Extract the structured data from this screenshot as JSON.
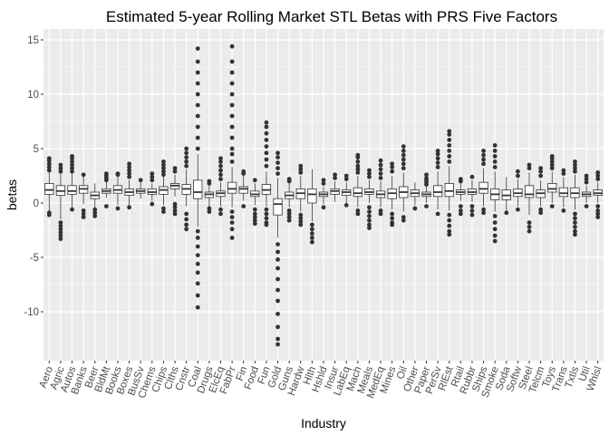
{
  "chart_data": {
    "type": "boxplot",
    "title": "Estimated 5-year Rolling Market STL Betas with PRS Five Factors",
    "xlabel": "Industry",
    "ylabel": "betas",
    "ylim": [
      -14.5,
      16
    ],
    "yticks": [
      -10,
      -5,
      0,
      5,
      10,
      15
    ],
    "grid": true,
    "legend": "none",
    "colors": {
      "panel": "#ebebeb",
      "grid_major": "#ffffff",
      "box_fill": "#ffffff",
      "box_line": "#333333",
      "outlier": "#333333"
    },
    "categories": [
      "Aero",
      "Agric",
      "Autos",
      "Banks",
      "Beer",
      "BldMt",
      "Books",
      "Boxes",
      "BusSv",
      "Chems",
      "Chips",
      "Clths",
      "Cnstr",
      "Coal",
      "Drugs",
      "ElcEq",
      "FabPr",
      "Fin",
      "Food",
      "Fun",
      "Gold",
      "Guns",
      "Hardw",
      "Hlth",
      "Hshld",
      "Insur",
      "LabEq",
      "Mach",
      "Meals",
      "MedEq",
      "Mines",
      "Oil",
      "Other",
      "Paper",
      "PerSv",
      "RlEst",
      "Rtail",
      "Rubbr",
      "Ships",
      "Smoke",
      "Soda",
      "Softw",
      "Steel",
      "Telcm",
      "Toys",
      "Trans",
      "Txtls",
      "Util",
      "Whlsl"
    ],
    "boxes": [
      {
        "q1": 0.8,
        "median": 1.2,
        "q3": 1.8,
        "low": -0.8,
        "high": 2.8,
        "outliers": [
          -1.1,
          -0.9,
          3.0,
          3.3,
          3.6,
          3.9,
          4.1
        ]
      },
      {
        "q1": 0.7,
        "median": 1.1,
        "q3": 1.6,
        "low": -1.5,
        "high": 2.7,
        "outliers": [
          -3.3,
          -3.0,
          -2.7,
          -2.4,
          -2.1,
          -1.8,
          2.9,
          3.2,
          3.5
        ]
      },
      {
        "q1": 0.8,
        "median": 1.1,
        "q3": 1.6,
        "low": -0.4,
        "high": 2.7,
        "outliers": [
          -0.6,
          2.9,
          3.2,
          3.5,
          3.8,
          4.1,
          4.3
        ]
      },
      {
        "q1": 0.9,
        "median": 1.3,
        "q3": 1.6,
        "low": -0.1,
        "high": 2.4,
        "outliers": [
          -1.3,
          -1.0,
          -0.7,
          2.6
        ]
      },
      {
        "q1": 0.4,
        "median": 0.7,
        "q3": 1.0,
        "low": -0.4,
        "high": 1.8,
        "outliers": [
          -1.2,
          -0.9,
          -0.6
        ]
      },
      {
        "q1": 0.9,
        "median": 1.1,
        "q3": 1.3,
        "low": 0.5,
        "high": 1.9,
        "outliers": [
          2.1,
          2.3,
          2.5,
          2.7,
          -0.3
        ]
      },
      {
        "q1": 0.9,
        "median": 1.2,
        "q3": 1.6,
        "low": -0.2,
        "high": 2.4,
        "outliers": [
          2.6,
          2.7,
          -0.5
        ]
      },
      {
        "q1": 0.7,
        "median": 1.0,
        "q3": 1.3,
        "low": -0.2,
        "high": 2.1,
        "outliers": [
          2.4,
          2.7,
          3.0,
          3.3,
          3.6,
          -0.4
        ]
      },
      {
        "q1": 0.9,
        "median": 1.1,
        "q3": 1.3,
        "low": 0.4,
        "high": 1.9,
        "outliers": [
          2.1
        ]
      },
      {
        "q1": 0.8,
        "median": 1.0,
        "q3": 1.3,
        "low": 0.2,
        "high": 1.8,
        "outliers": [
          2.1,
          2.4,
          2.7,
          -0.1
        ]
      },
      {
        "q1": 0.8,
        "median": 1.2,
        "q3": 1.5,
        "low": -0.2,
        "high": 2.4,
        "outliers": [
          2.6,
          2.9,
          3.2,
          3.5,
          3.8,
          -0.5,
          -0.8
        ]
      },
      {
        "q1": 1.3,
        "median": 1.6,
        "q3": 1.8,
        "low": 0.6,
        "high": 2.6,
        "outliers": [
          2.9,
          3.2,
          -0.1,
          -0.4,
          -0.7,
          -1.0
        ]
      },
      {
        "q1": 0.8,
        "median": 1.3,
        "q3": 1.7,
        "low": -0.3,
        "high": 3.1,
        "outliers": [
          3.4,
          3.8,
          4.2,
          4.6,
          5.0,
          -1.0,
          -1.5,
          -2.0,
          -2.4
        ]
      },
      {
        "q1": 0.4,
        "median": 1.0,
        "q3": 2.1,
        "low": -2.2,
        "high": 4.5,
        "outliers": [
          5,
          6,
          7,
          8,
          9,
          10,
          11,
          12,
          13,
          14.2,
          -2.6,
          -3.2,
          -4.0,
          -4.8,
          -5.6,
          -6.4,
          -7.4,
          -8.5,
          -9.6
        ]
      },
      {
        "q1": 0.5,
        "median": 0.8,
        "q3": 1.0,
        "low": -0.3,
        "high": 1.6,
        "outliers": [
          1.8,
          2.0,
          -0.5,
          -0.8
        ]
      },
      {
        "q1": 0.6,
        "median": 0.9,
        "q3": 1.1,
        "low": -0.3,
        "high": 1.9,
        "outliers": [
          2.2,
          2.6,
          3.0,
          3.4,
          3.8,
          4.1,
          -0.6,
          -1.0
        ]
      },
      {
        "q1": 0.9,
        "median": 1.3,
        "q3": 1.9,
        "low": -0.4,
        "high": 3.3,
        "outliers": [
          3.8,
          4.5,
          5,
          6,
          7,
          8,
          9,
          10,
          11,
          12,
          13,
          14.4,
          -0.8,
          -1.3,
          -1.8,
          -2.4,
          -3.2
        ]
      },
      {
        "q1": 0.9,
        "median": 1.3,
        "q3": 1.5,
        "low": 0.2,
        "high": 2.5,
        "outliers": [
          2.7,
          2.9,
          -0.3
        ]
      },
      {
        "q1": 0.6,
        "median": 0.8,
        "q3": 1.1,
        "low": -0.2,
        "high": 1.8,
        "outliers": [
          2.1,
          -0.6,
          -1.0,
          -1.3,
          -1.6,
          -1.9
        ]
      },
      {
        "q1": 0.8,
        "median": 1.2,
        "q3": 1.7,
        "low": -0.3,
        "high": 2.9,
        "outliers": [
          3.4,
          4.0,
          4.6,
          5.2,
          5.8,
          6.4,
          7.0,
          7.4,
          -0.6,
          -1.0,
          -1.4,
          -1.8,
          -2.0
        ]
      },
      {
        "q1": -1.1,
        "median": -0.1,
        "q3": 0.4,
        "low": -3.2,
        "high": 2.3,
        "outliers": [
          2.7,
          3.2,
          3.7,
          4.2,
          4.6,
          -3.8,
          -4.5,
          -5.2,
          -6.0,
          -7.0,
          -8.0,
          -9.0,
          -10.2,
          -11.4,
          -12.5,
          -13.0
        ]
      },
      {
        "q1": 0.4,
        "median": 0.7,
        "q3": 1.0,
        "low": -0.4,
        "high": 1.8,
        "outliers": [
          2.0,
          2.2,
          -0.7,
          -1.0,
          -1.3,
          -1.6
        ]
      },
      {
        "q1": 0.4,
        "median": 0.9,
        "q3": 1.3,
        "low": -0.8,
        "high": 2.5,
        "outliers": [
          2.8,
          3.1,
          3.4,
          -1.1,
          -1.4,
          -1.7,
          -2.0
        ]
      },
      {
        "q1": 0.0,
        "median": 0.8,
        "q3": 1.3,
        "low": -1.7,
        "high": 3.1,
        "outliers": [
          -2.0,
          -2.4,
          -2.8,
          -3.2,
          -3.6
        ]
      },
      {
        "q1": 0.6,
        "median": 0.8,
        "q3": 1.0,
        "low": -0.1,
        "high": 1.5,
        "outliers": [
          1.8,
          2.1,
          -0.4
        ]
      },
      {
        "q1": 0.8,
        "median": 1.1,
        "q3": 1.3,
        "low": 0.1,
        "high": 2.0,
        "outliers": [
          2.3,
          2.6
        ]
      },
      {
        "q1": 0.7,
        "median": 1.0,
        "q3": 1.2,
        "low": 0.0,
        "high": 1.9,
        "outliers": [
          2.2,
          2.5,
          -0.2
        ]
      },
      {
        "q1": 0.6,
        "median": 0.9,
        "q3": 1.4,
        "low": -0.4,
        "high": 2.5,
        "outliers": [
          2.8,
          3.1,
          3.4,
          3.8,
          4.2,
          4.4,
          -0.7,
          -1.0
        ]
      },
      {
        "q1": 0.8,
        "median": 1.0,
        "q3": 1.3,
        "low": 0.0,
        "high": 2.1,
        "outliers": [
          2.4,
          2.7,
          3.0,
          -0.4,
          -0.8,
          -1.2,
          -1.6,
          -2.0,
          -2.3
        ]
      },
      {
        "q1": 0.5,
        "median": 0.8,
        "q3": 1.1,
        "low": -0.4,
        "high": 2.0,
        "outliers": [
          2.3,
          2.7,
          3.1,
          3.5,
          3.9,
          -0.7,
          -1.0
        ]
      },
      {
        "q1": 0.4,
        "median": 0.9,
        "q3": 1.3,
        "low": -0.6,
        "high": 2.5,
        "outliers": [
          2.9,
          3.3,
          3.6,
          -1.0,
          -1.4,
          -1.8,
          -2.0
        ]
      },
      {
        "q1": 0.5,
        "median": 1.0,
        "q3": 1.5,
        "low": -0.8,
        "high": 2.8,
        "outliers": [
          3.2,
          3.6,
          4.0,
          4.4,
          4.8,
          5.2,
          -1.3,
          -1.6
        ]
      },
      {
        "q1": 0.6,
        "median": 0.9,
        "q3": 1.2,
        "low": -0.2,
        "high": 1.9,
        "outliers": [
          -0.5
        ]
      },
      {
        "q1": 0.6,
        "median": 0.8,
        "q3": 1.0,
        "low": 0.0,
        "high": 1.5,
        "outliers": [
          1.7,
          1.9,
          2.1,
          2.3,
          2.6,
          -0.3
        ]
      },
      {
        "q1": 0.6,
        "median": 1.0,
        "q3": 1.6,
        "low": -0.6,
        "high": 2.9,
        "outliers": [
          3.3,
          3.7,
          4.1,
          4.5,
          4.8,
          -1.0
        ]
      },
      {
        "q1": 0.6,
        "median": 1.1,
        "q3": 1.8,
        "low": -0.7,
        "high": 3.4,
        "outliers": [
          3.8,
          4.3,
          4.8,
          5.3,
          5.8,
          6.3,
          6.6,
          -1.1,
          -1.6,
          -2.1,
          -2.6,
          -2.9
        ]
      },
      {
        "q1": 0.8,
        "median": 1.0,
        "q3": 1.2,
        "low": 0.2,
        "high": 1.8,
        "outliers": [
          2.0,
          2.2,
          -0.3,
          -0.7,
          -1.0
        ]
      },
      {
        "q1": 0.8,
        "median": 1.0,
        "q3": 1.3,
        "low": 0.1,
        "high": 2.1,
        "outliers": [
          2.4,
          -0.3,
          -0.7,
          -1.1
        ]
      },
      {
        "q1": 0.9,
        "median": 1.3,
        "q3": 1.9,
        "low": -0.3,
        "high": 3.2,
        "outliers": [
          3.6,
          4.0,
          4.4,
          4.8,
          -0.6,
          -0.9
        ]
      },
      {
        "q1": 0.3,
        "median": 0.8,
        "q3": 1.3,
        "low": -0.8,
        "high": 2.9,
        "outliers": [
          3.3,
          3.8,
          4.3,
          4.8,
          5.3,
          -1.2,
          -1.8,
          -2.4,
          -3.0,
          -3.5
        ]
      },
      {
        "q1": 0.3,
        "median": 0.7,
        "q3": 1.2,
        "low": -0.7,
        "high": 2.4,
        "outliers": [
          -0.9
        ]
      },
      {
        "q1": 0.6,
        "median": 0.9,
        "q3": 1.3,
        "low": -0.3,
        "high": 2.2,
        "outliers": [
          2.5,
          2.9,
          -0.6
        ]
      },
      {
        "q1": 0.5,
        "median": 0.8,
        "q3": 1.6,
        "low": -1.1,
        "high": 2.8,
        "outliers": [
          3.2,
          3.5,
          -1.8,
          -2.2,
          -2.6
        ]
      },
      {
        "q1": 0.5,
        "median": 0.9,
        "q3": 1.2,
        "low": -0.3,
        "high": 2.1,
        "outliers": [
          2.5,
          2.9,
          3.2,
          -0.6,
          -0.9
        ]
      },
      {
        "q1": 1.0,
        "median": 1.3,
        "q3": 1.8,
        "low": 0.0,
        "high": 2.9,
        "outliers": [
          3.2,
          3.5,
          3.8,
          4.1,
          4.3,
          -0.3
        ]
      },
      {
        "q1": 0.6,
        "median": 0.9,
        "q3": 1.4,
        "low": -0.4,
        "high": 2.4,
        "outliers": [
          2.7,
          3.0,
          -0.7
        ]
      },
      {
        "q1": 0.5,
        "median": 0.9,
        "q3": 1.4,
        "low": -0.6,
        "high": 2.6,
        "outliers": [
          2.9,
          3.2,
          3.5,
          3.8,
          -1.0,
          -1.4,
          -1.8,
          -2.2,
          -2.6,
          -2.9
        ]
      },
      {
        "q1": 0.6,
        "median": 0.8,
        "q3": 1.0,
        "low": 0.0,
        "high": 1.6,
        "outliers": [
          1.9,
          2.2,
          2.5,
          -0.3
        ]
      },
      {
        "q1": 0.7,
        "median": 0.9,
        "q3": 1.2,
        "low": 0.0,
        "high": 1.9,
        "outliers": [
          2.2,
          2.5,
          2.8,
          -0.3,
          -0.7,
          -1.0,
          -1.3
        ]
      }
    ]
  }
}
